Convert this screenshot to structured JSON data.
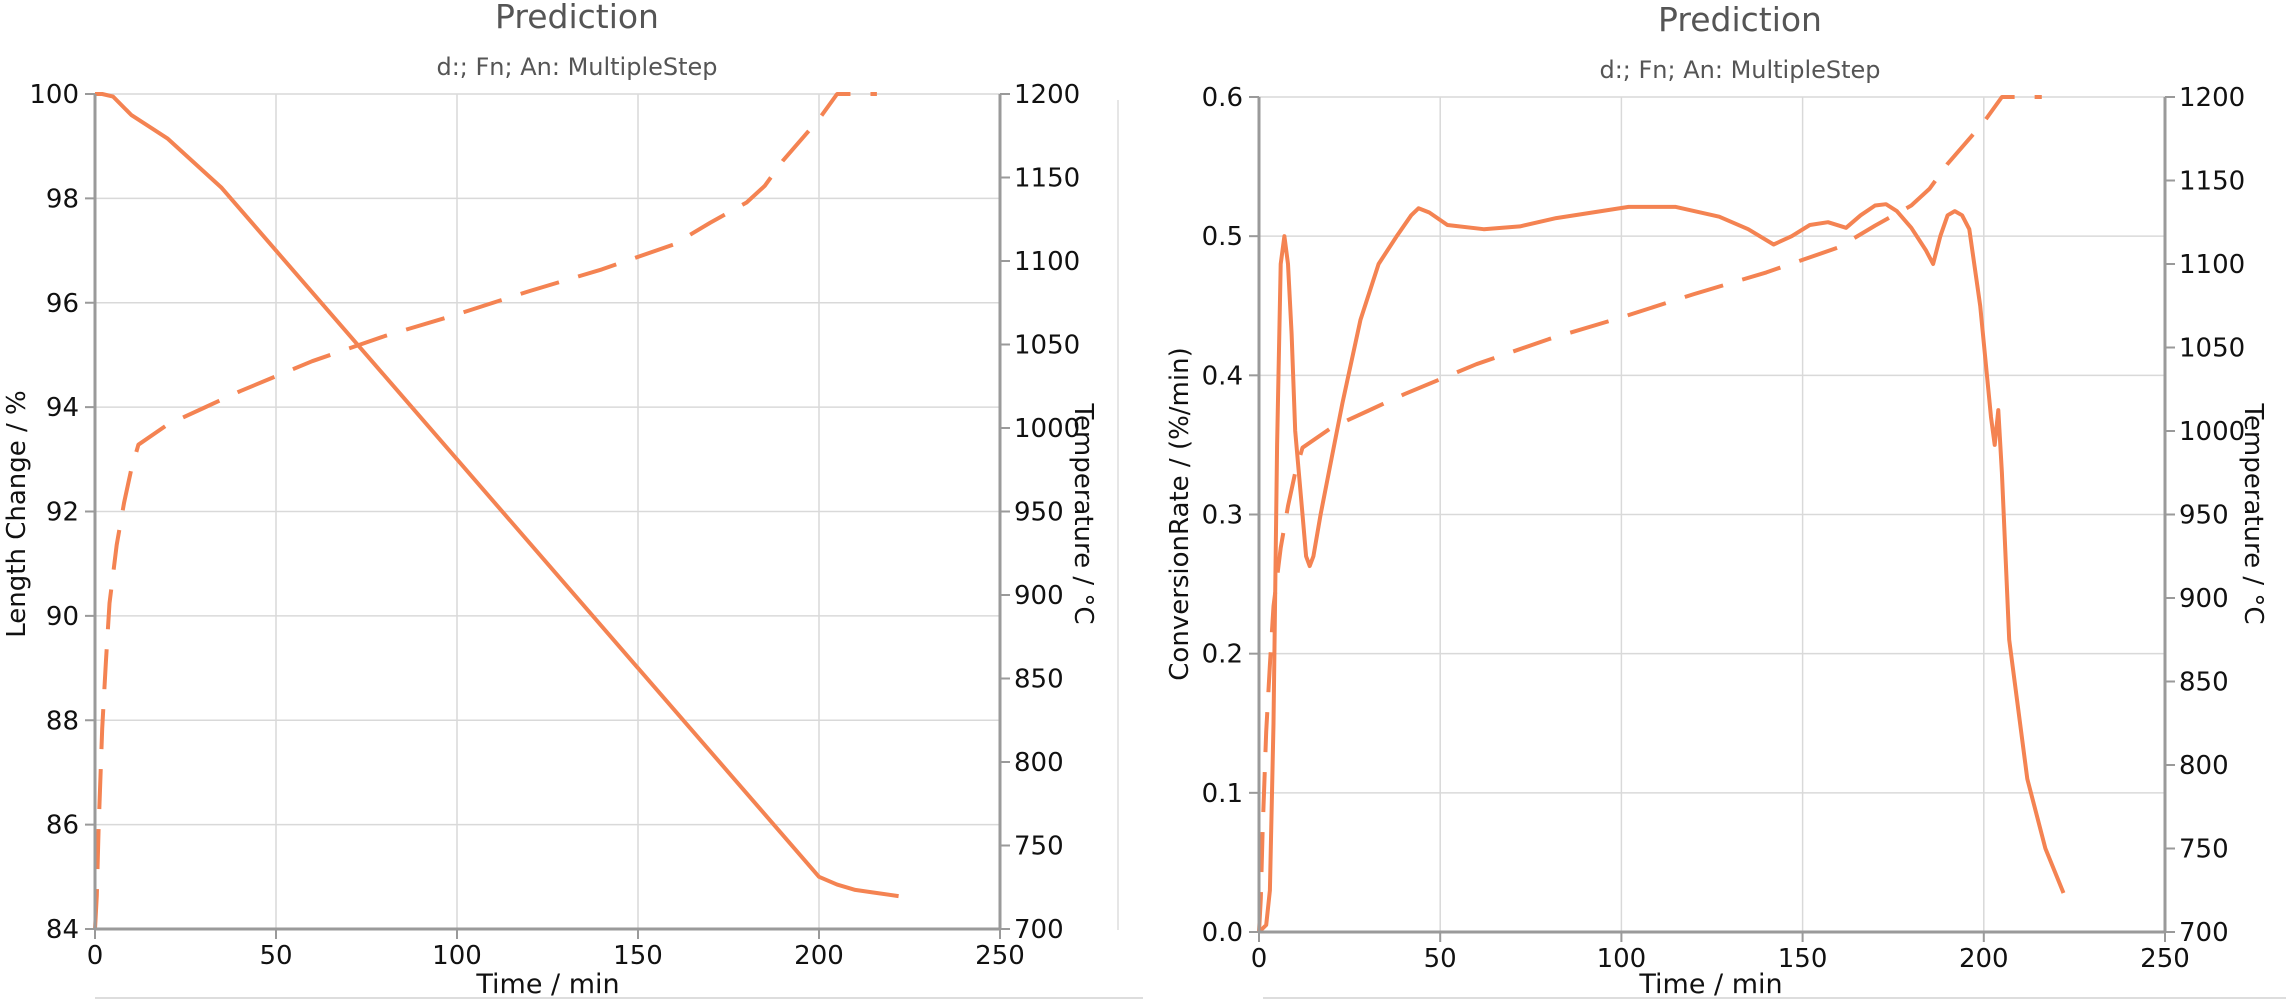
{
  "colors": {
    "series": "#f48352",
    "grid": "#d9d9d9",
    "axis": "#9a9a9a",
    "text": "#111111",
    "title": "#555555",
    "subtitle": "#555555",
    "footer_line": "#dddddd"
  },
  "chart_data": [
    {
      "type": "line",
      "title": "Prediction",
      "subtitle": "d:; Fn; An: MultipleStep",
      "xlabel": "Time / min",
      "ylabel": "Length Change / %",
      "y2label": "Temperature / °C",
      "xlim": [
        0,
        250
      ],
      "ylim": [
        84,
        100
      ],
      "y2lim": [
        700,
        1200
      ],
      "xticks": [
        0,
        50,
        100,
        150,
        200,
        250
      ],
      "yticks": [
        84,
        86,
        88,
        90,
        92,
        94,
        96,
        98,
        100
      ],
      "y2ticks": [
        700,
        750,
        800,
        850,
        900,
        950,
        1000,
        1050,
        1100,
        1150,
        1200
      ],
      "grid": true,
      "series": [
        {
          "axis": "left",
          "style": "solid",
          "x": [
            0,
            2,
            5,
            10,
            20,
            35,
            50,
            75,
            100,
            125,
            150,
            175,
            195,
            200,
            205,
            210,
            215,
            222
          ],
          "y": [
            100,
            100,
            99.95,
            99.6,
            99.15,
            98.2,
            97.0,
            95.0,
            93.0,
            91.0,
            89.0,
            87.0,
            85.4,
            85.0,
            84.85,
            84.75,
            84.7,
            84.63
          ]
        },
        {
          "axis": "right",
          "style": "dashed",
          "x": [
            0,
            0.5,
            1,
            2,
            3,
            4,
            6,
            8,
            10,
            12,
            20,
            30,
            40,
            60,
            80,
            100,
            120,
            140,
            160,
            170,
            180,
            185,
            190,
            200,
            205,
            210,
            216
          ],
          "y": [
            700,
            720,
            760,
            820,
            860,
            895,
            930,
            955,
            975,
            990,
            1002,
            1012,
            1022,
            1040,
            1055,
            1068,
            1082,
            1095,
            1110,
            1123,
            1135,
            1145,
            1160,
            1185,
            1200,
            1200,
            1200
          ]
        }
      ]
    },
    {
      "type": "line",
      "title": "Prediction",
      "subtitle": "d:; Fn; An: MultipleStep",
      "xlabel": "Time / min",
      "ylabel": "ConversionRate / (%/min)",
      "y2label": "Temperature / °C",
      "xlim": [
        0,
        250
      ],
      "ylim": [
        0,
        0.6
      ],
      "y2lim": [
        700,
        1200
      ],
      "xticks": [
        0,
        50,
        100,
        150,
        200,
        250
      ],
      "yticks": [
        0,
        0.1,
        0.2,
        0.3,
        0.4,
        0.5,
        0.6
      ],
      "y2ticks": [
        700,
        750,
        800,
        850,
        900,
        950,
        1000,
        1050,
        1100,
        1150,
        1200
      ],
      "grid": true,
      "series": [
        {
          "axis": "left",
          "style": "solid",
          "x": [
            0,
            2,
            3,
            4,
            5,
            6,
            7,
            8,
            9,
            10,
            12,
            13,
            14,
            15,
            17,
            20,
            23,
            28,
            33,
            38,
            42,
            44,
            47,
            52,
            62,
            72,
            82,
            92,
            102,
            107,
            115,
            127,
            135,
            142,
            147,
            152,
            157,
            162,
            166,
            170,
            173,
            176,
            180,
            184,
            186,
            188,
            190,
            192,
            194,
            196,
            199,
            202,
            203,
            204,
            205,
            207,
            212,
            217,
            222
          ],
          "y": [
            0,
            0.005,
            0.03,
            0.15,
            0.35,
            0.48,
            0.5,
            0.48,
            0.43,
            0.36,
            0.3,
            0.27,
            0.263,
            0.27,
            0.3,
            0.34,
            0.38,
            0.44,
            0.48,
            0.5,
            0.515,
            0.52,
            0.517,
            0.508,
            0.505,
            0.507,
            0.513,
            0.517,
            0.521,
            0.521,
            0.521,
            0.514,
            0.505,
            0.494,
            0.5,
            0.508,
            0.51,
            0.506,
            0.515,
            0.522,
            0.523,
            0.518,
            0.506,
            0.49,
            0.48,
            0.5,
            0.515,
            0.518,
            0.515,
            0.505,
            0.45,
            0.37,
            0.35,
            0.375,
            0.33,
            0.21,
            0.11,
            0.06,
            0.028
          ]
        },
        {
          "axis": "right",
          "style": "dashed",
          "x": [
            0,
            0.5,
            1,
            2,
            3,
            4,
            6,
            8,
            10,
            12,
            20,
            30,
            40,
            60,
            80,
            100,
            120,
            140,
            160,
            170,
            180,
            185,
            190,
            200,
            205,
            210,
            216
          ],
          "y": [
            700,
            720,
            760,
            820,
            860,
            895,
            930,
            955,
            975,
            990,
            1002,
            1012,
            1022,
            1040,
            1055,
            1068,
            1082,
            1095,
            1110,
            1123,
            1135,
            1145,
            1160,
            1185,
            1200,
            1200,
            1200
          ]
        }
      ]
    }
  ]
}
